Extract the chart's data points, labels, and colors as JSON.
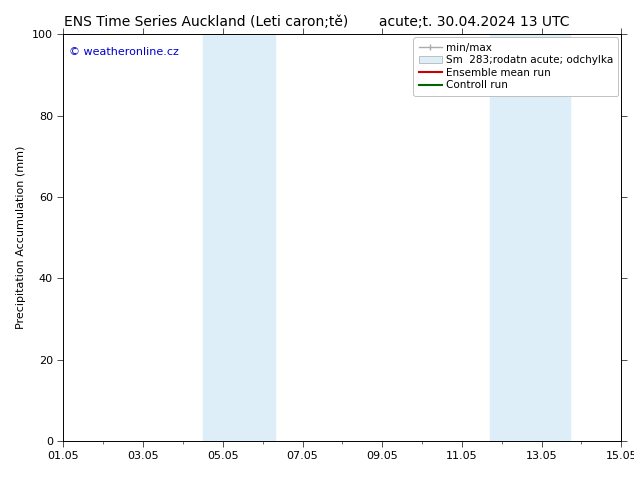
{
  "title": "ENS Time Series Auckland (Leti caron;tě)       acute;t. 30.04.2024 13 UTC",
  "ylabel": "Precipitation Accumulation (mm)",
  "ylim": [
    0,
    100
  ],
  "yticks": [
    0,
    20,
    40,
    60,
    80,
    100
  ],
  "xtick_labels": [
    "01.05",
    "03.05",
    "05.05",
    "07.05",
    "09.05",
    "11.05",
    "13.05",
    "15.05"
  ],
  "xtick_positions": [
    0,
    2,
    4,
    6,
    8,
    10,
    12,
    14
  ],
  "xlim": [
    0,
    14
  ],
  "shaded_regions": [
    {
      "x_start": 3.5,
      "x_end": 5.3,
      "color": "#ddeef8",
      "alpha": 1.0
    },
    {
      "x_start": 10.7,
      "x_end": 12.7,
      "color": "#ddeef8",
      "alpha": 1.0
    }
  ],
  "legend_entries": [
    {
      "label": "min/max",
      "type": "errbar",
      "color": "#aaaaaa"
    },
    {
      "label": "Sm  283;rodatn acute; odchylka",
      "type": "box",
      "facecolor": "#ddeef8",
      "edgecolor": "#aaaaaa"
    },
    {
      "label": "Ensemble mean run",
      "type": "line",
      "color": "#cc0000"
    },
    {
      "label": "Controll run",
      "type": "line",
      "color": "#006600"
    }
  ],
  "watermark_text": "© weatheronline.cz",
  "watermark_color": "#0000cc",
  "bg_color": "#ffffff",
  "plot_bg_color": "#ffffff",
  "border_color": "#000000",
  "font_size_title": 10,
  "font_size_axis": 8,
  "font_size_tick": 8,
  "font_size_legend": 7.5,
  "font_size_watermark": 8
}
